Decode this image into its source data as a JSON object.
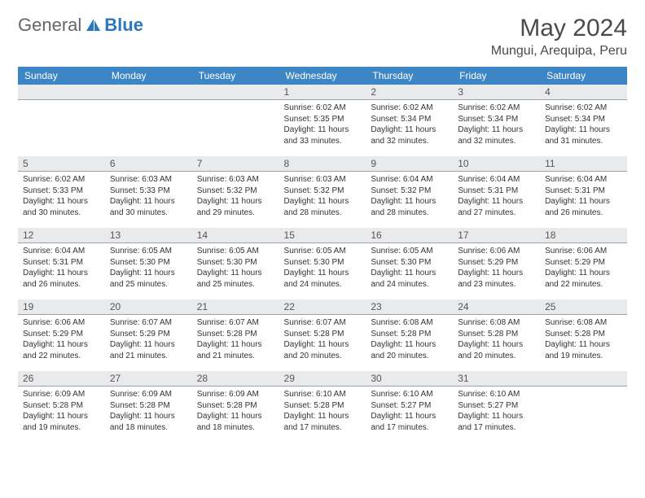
{
  "logo": {
    "text1": "General",
    "text2": "Blue"
  },
  "title": "May 2024",
  "location": "Mungui, Arequipa, Peru",
  "colors": {
    "header_bg": "#3d86c6",
    "daynum_bg": "#e8eaec",
    "text_primary": "#333333",
    "text_muted": "#555555",
    "logo_blue": "#2d77bd"
  },
  "day_names": [
    "Sunday",
    "Monday",
    "Tuesday",
    "Wednesday",
    "Thursday",
    "Friday",
    "Saturday"
  ],
  "weeks": [
    [
      {
        "n": "",
        "sr": "",
        "ss": "",
        "dl": ""
      },
      {
        "n": "",
        "sr": "",
        "ss": "",
        "dl": ""
      },
      {
        "n": "",
        "sr": "",
        "ss": "",
        "dl": ""
      },
      {
        "n": "1",
        "sr": "6:02 AM",
        "ss": "5:35 PM",
        "dl": "11 hours and 33 minutes."
      },
      {
        "n": "2",
        "sr": "6:02 AM",
        "ss": "5:34 PM",
        "dl": "11 hours and 32 minutes."
      },
      {
        "n": "3",
        "sr": "6:02 AM",
        "ss": "5:34 PM",
        "dl": "11 hours and 32 minutes."
      },
      {
        "n": "4",
        "sr": "6:02 AM",
        "ss": "5:34 PM",
        "dl": "11 hours and 31 minutes."
      }
    ],
    [
      {
        "n": "5",
        "sr": "6:02 AM",
        "ss": "5:33 PM",
        "dl": "11 hours and 30 minutes."
      },
      {
        "n": "6",
        "sr": "6:03 AM",
        "ss": "5:33 PM",
        "dl": "11 hours and 30 minutes."
      },
      {
        "n": "7",
        "sr": "6:03 AM",
        "ss": "5:32 PM",
        "dl": "11 hours and 29 minutes."
      },
      {
        "n": "8",
        "sr": "6:03 AM",
        "ss": "5:32 PM",
        "dl": "11 hours and 28 minutes."
      },
      {
        "n": "9",
        "sr": "6:04 AM",
        "ss": "5:32 PM",
        "dl": "11 hours and 28 minutes."
      },
      {
        "n": "10",
        "sr": "6:04 AM",
        "ss": "5:31 PM",
        "dl": "11 hours and 27 minutes."
      },
      {
        "n": "11",
        "sr": "6:04 AM",
        "ss": "5:31 PM",
        "dl": "11 hours and 26 minutes."
      }
    ],
    [
      {
        "n": "12",
        "sr": "6:04 AM",
        "ss": "5:31 PM",
        "dl": "11 hours and 26 minutes."
      },
      {
        "n": "13",
        "sr": "6:05 AM",
        "ss": "5:30 PM",
        "dl": "11 hours and 25 minutes."
      },
      {
        "n": "14",
        "sr": "6:05 AM",
        "ss": "5:30 PM",
        "dl": "11 hours and 25 minutes."
      },
      {
        "n": "15",
        "sr": "6:05 AM",
        "ss": "5:30 PM",
        "dl": "11 hours and 24 minutes."
      },
      {
        "n": "16",
        "sr": "6:05 AM",
        "ss": "5:30 PM",
        "dl": "11 hours and 24 minutes."
      },
      {
        "n": "17",
        "sr": "6:06 AM",
        "ss": "5:29 PM",
        "dl": "11 hours and 23 minutes."
      },
      {
        "n": "18",
        "sr": "6:06 AM",
        "ss": "5:29 PM",
        "dl": "11 hours and 22 minutes."
      }
    ],
    [
      {
        "n": "19",
        "sr": "6:06 AM",
        "ss": "5:29 PM",
        "dl": "11 hours and 22 minutes."
      },
      {
        "n": "20",
        "sr": "6:07 AM",
        "ss": "5:29 PM",
        "dl": "11 hours and 21 minutes."
      },
      {
        "n": "21",
        "sr": "6:07 AM",
        "ss": "5:28 PM",
        "dl": "11 hours and 21 minutes."
      },
      {
        "n": "22",
        "sr": "6:07 AM",
        "ss": "5:28 PM",
        "dl": "11 hours and 20 minutes."
      },
      {
        "n": "23",
        "sr": "6:08 AM",
        "ss": "5:28 PM",
        "dl": "11 hours and 20 minutes."
      },
      {
        "n": "24",
        "sr": "6:08 AM",
        "ss": "5:28 PM",
        "dl": "11 hours and 20 minutes."
      },
      {
        "n": "25",
        "sr": "6:08 AM",
        "ss": "5:28 PM",
        "dl": "11 hours and 19 minutes."
      }
    ],
    [
      {
        "n": "26",
        "sr": "6:09 AM",
        "ss": "5:28 PM",
        "dl": "11 hours and 19 minutes."
      },
      {
        "n": "27",
        "sr": "6:09 AM",
        "ss": "5:28 PM",
        "dl": "11 hours and 18 minutes."
      },
      {
        "n": "28",
        "sr": "6:09 AM",
        "ss": "5:28 PM",
        "dl": "11 hours and 18 minutes."
      },
      {
        "n": "29",
        "sr": "6:10 AM",
        "ss": "5:28 PM",
        "dl": "11 hours and 17 minutes."
      },
      {
        "n": "30",
        "sr": "6:10 AM",
        "ss": "5:27 PM",
        "dl": "11 hours and 17 minutes."
      },
      {
        "n": "31",
        "sr": "6:10 AM",
        "ss": "5:27 PM",
        "dl": "11 hours and 17 minutes."
      },
      {
        "n": "",
        "sr": "",
        "ss": "",
        "dl": ""
      }
    ]
  ],
  "labels": {
    "sunrise": "Sunrise:",
    "sunset": "Sunset:",
    "daylight": "Daylight:"
  }
}
